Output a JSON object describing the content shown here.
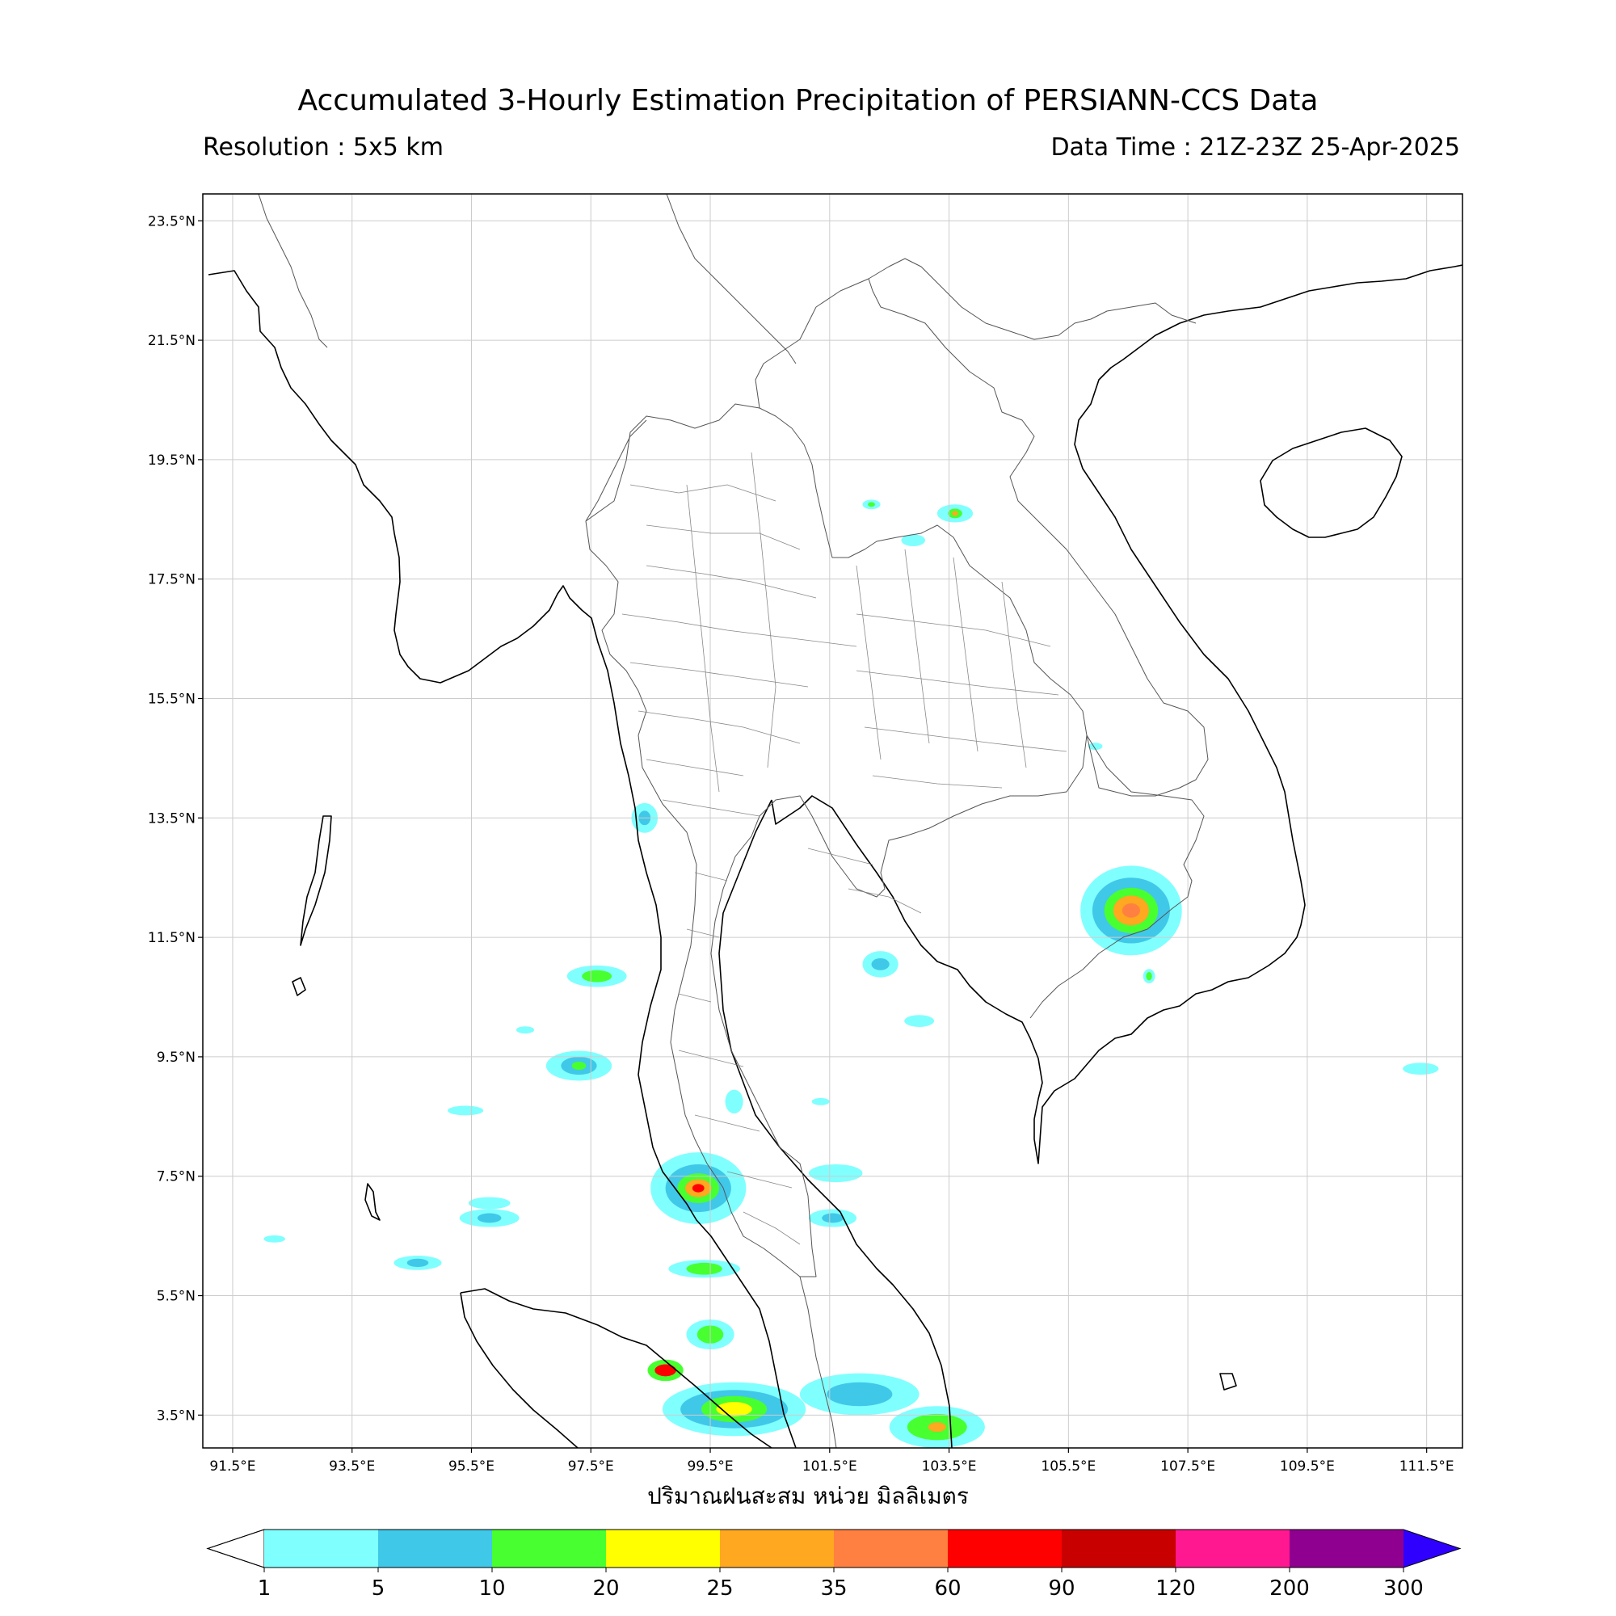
{
  "title": "Accumulated 3-Hourly Estimation Precipitation of PERSIANN-CCS Data",
  "resolution": "Resolution : 5x5 km",
  "data_time": "Data Time : 21Z-23Z 25-Apr-2025",
  "xlabel": "ปริมาณฝนสะสม หน่วย มิลลิเมตร",
  "map": {
    "lon_range": [
      91.0,
      112.1
    ],
    "lat_range": [
      2.95,
      23.95
    ],
    "lat_ticks": [
      23.5,
      21.5,
      19.5,
      17.5,
      15.5,
      13.5,
      11.5,
      9.5,
      7.5,
      5.5,
      3.5
    ],
    "lat_tick_labels": [
      "23.5°N",
      "21.5°N",
      "19.5°N",
      "17.5°N",
      "15.5°N",
      "13.5°N",
      "11.5°N",
      "9.5°N",
      "7.5°N",
      "5.5°N",
      "3.5°N"
    ],
    "lon_ticks": [
      91.5,
      93.5,
      95.5,
      97.5,
      99.5,
      101.5,
      103.5,
      105.5,
      107.5,
      109.5,
      111.5
    ],
    "lon_tick_labels": [
      "91.5°E",
      "93.5°E",
      "95.5°E",
      "97.5°E",
      "99.5°E",
      "101.5°E",
      "103.5°E",
      "105.5°E",
      "107.5°E",
      "109.5°E",
      "111.5°E"
    ],
    "grid": true
  },
  "colorbar": {
    "ticks": [
      "1",
      "5",
      "10",
      "20",
      "25",
      "35",
      "60",
      "90",
      "120",
      "200",
      "300"
    ],
    "colors": [
      "#80ffff",
      "#40c8e8",
      "#48ff30",
      "#ffff00",
      "#ffa820",
      "#ff8040",
      "#ff0000",
      "#c80000",
      "#ff1890",
      "#900090"
    ],
    "under_color": "#ffffff",
    "over_color": "#3000ff"
  },
  "rain_cells": [
    {
      "lon": 106.55,
      "lat": 11.95,
      "layers": [
        [
          0.85,
          0.75,
          "#80ffff"
        ],
        [
          0.65,
          0.55,
          "#40c8e8"
        ],
        [
          0.45,
          0.38,
          "#48ff30"
        ],
        [
          0.3,
          0.25,
          "#ffa820"
        ],
        [
          0.15,
          0.12,
          "#ff8040"
        ]
      ]
    },
    {
      "lon": 99.3,
      "lat": 7.3,
      "layers": [
        [
          0.8,
          0.6,
          "#80ffff"
        ],
        [
          0.55,
          0.4,
          "#40c8e8"
        ],
        [
          0.35,
          0.25,
          "#48ff30"
        ],
        [
          0.22,
          0.15,
          "#ffa820"
        ],
        [
          0.1,
          0.07,
          "#ff0000"
        ]
      ]
    },
    {
      "lon": 99.9,
      "lat": 3.6,
      "layers": [
        [
          1.2,
          0.45,
          "#80ffff"
        ],
        [
          0.9,
          0.32,
          "#40c8e8"
        ],
        [
          0.55,
          0.22,
          "#48ff30"
        ],
        [
          0.3,
          0.12,
          "#ffff00"
        ]
      ]
    },
    {
      "lon": 98.75,
      "lat": 4.25,
      "layers": [
        [
          0.3,
          0.18,
          "#48ff30"
        ],
        [
          0.18,
          0.1,
          "#ff0000"
        ]
      ]
    },
    {
      "lon": 102.0,
      "lat": 3.85,
      "layers": [
        [
          1.0,
          0.35,
          "#80ffff"
        ],
        [
          0.55,
          0.2,
          "#40c8e8"
        ]
      ]
    },
    {
      "lon": 103.3,
      "lat": 3.3,
      "layers": [
        [
          0.8,
          0.35,
          "#80ffff"
        ],
        [
          0.5,
          0.22,
          "#48ff30"
        ],
        [
          0.15,
          0.08,
          "#ffa820"
        ]
      ]
    },
    {
      "lon": 99.5,
      "lat": 4.85,
      "layers": [
        [
          0.4,
          0.25,
          "#80ffff"
        ],
        [
          0.22,
          0.15,
          "#48ff30"
        ]
      ]
    },
    {
      "lon": 99.4,
      "lat": 5.95,
      "layers": [
        [
          0.6,
          0.15,
          "#80ffff"
        ],
        [
          0.3,
          0.1,
          "#48ff30"
        ]
      ]
    },
    {
      "lon": 97.3,
      "lat": 9.35,
      "layers": [
        [
          0.55,
          0.25,
          "#80ffff"
        ],
        [
          0.3,
          0.15,
          "#40c8e8"
        ],
        [
          0.12,
          0.07,
          "#48ff30"
        ]
      ]
    },
    {
      "lon": 97.6,
      "lat": 10.85,
      "layers": [
        [
          0.5,
          0.18,
          "#80ffff"
        ],
        [
          0.25,
          0.1,
          "#48ff30"
        ]
      ]
    },
    {
      "lon": 95.8,
      "lat": 6.8,
      "layers": [
        [
          0.5,
          0.15,
          "#80ffff"
        ],
        [
          0.2,
          0.08,
          "#40c8e8"
        ]
      ]
    },
    {
      "lon": 94.6,
      "lat": 6.05,
      "layers": [
        [
          0.4,
          0.12,
          "#80ffff"
        ],
        [
          0.18,
          0.07,
          "#40c8e8"
        ]
      ]
    },
    {
      "lon": 95.8,
      "lat": 7.05,
      "layers": [
        [
          0.35,
          0.1,
          "#80ffff"
        ]
      ]
    },
    {
      "lon": 95.4,
      "lat": 8.6,
      "layers": [
        [
          0.3,
          0.08,
          "#80ffff"
        ]
      ]
    },
    {
      "lon": 98.4,
      "lat": 13.5,
      "layers": [
        [
          0.22,
          0.25,
          "#80ffff"
        ],
        [
          0.1,
          0.12,
          "#40c8e8"
        ]
      ]
    },
    {
      "lon": 102.35,
      "lat": 11.05,
      "layers": [
        [
          0.3,
          0.22,
          "#80ffff"
        ],
        [
          0.15,
          0.1,
          "#40c8e8"
        ]
      ]
    },
    {
      "lon": 101.55,
      "lat": 6.8,
      "layers": [
        [
          0.4,
          0.15,
          "#80ffff"
        ],
        [
          0.18,
          0.08,
          "#40c8e8"
        ]
      ]
    },
    {
      "lon": 101.6,
      "lat": 7.55,
      "layers": [
        [
          0.45,
          0.15,
          "#80ffff"
        ]
      ]
    },
    {
      "lon": 103.6,
      "lat": 18.6,
      "layers": [
        [
          0.3,
          0.15,
          "#80ffff"
        ],
        [
          0.12,
          0.08,
          "#48ff30"
        ],
        [
          0.05,
          0.04,
          "#ffa820"
        ]
      ]
    },
    {
      "lon": 102.2,
      "lat": 18.75,
      "layers": [
        [
          0.15,
          0.08,
          "#80ffff"
        ],
        [
          0.06,
          0.04,
          "#48ff30"
        ]
      ]
    },
    {
      "lon": 102.9,
      "lat": 18.15,
      "layers": [
        [
          0.2,
          0.1,
          "#80ffff"
        ]
      ]
    },
    {
      "lon": 103.0,
      "lat": 10.1,
      "layers": [
        [
          0.25,
          0.1,
          "#80ffff"
        ]
      ]
    },
    {
      "lon": 99.9,
      "lat": 8.75,
      "layers": [
        [
          0.15,
          0.2,
          "#80ffff"
        ]
      ]
    },
    {
      "lon": 92.2,
      "lat": 6.45,
      "layers": [
        [
          0.18,
          0.06,
          "#80ffff"
        ]
      ]
    },
    {
      "lon": 96.4,
      "lat": 9.95,
      "layers": [
        [
          0.15,
          0.06,
          "#80ffff"
        ]
      ]
    },
    {
      "lon": 106.85,
      "lat": 10.85,
      "layers": [
        [
          0.1,
          0.12,
          "#80ffff"
        ],
        [
          0.05,
          0.07,
          "#48ff30"
        ]
      ]
    },
    {
      "lon": 111.4,
      "lat": 9.3,
      "layers": [
        [
          0.3,
          0.1,
          "#80ffff"
        ]
      ]
    },
    {
      "lon": 105.95,
      "lat": 14.7,
      "layers": [
        [
          0.12,
          0.06,
          "#80ffff"
        ]
      ]
    },
    {
      "lon": 101.35,
      "lat": 8.75,
      "layers": [
        [
          0.15,
          0.06,
          "#80ffff"
        ]
      ]
    }
  ]
}
